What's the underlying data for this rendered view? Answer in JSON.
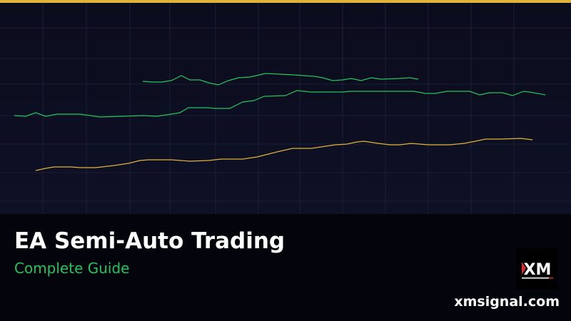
{
  "header": {
    "accent_color": "#e0b33a"
  },
  "banner": {
    "title": "EA Semi-Auto Trading",
    "subtitle": "Complete Guide",
    "website": "xmsignal.com",
    "logo_text": "XM"
  },
  "colors": {
    "background": "#0b0c1c",
    "line_green": "#22c55e",
    "line_gold": "#e0b33a",
    "subtitle": "#22c55e"
  }
}
